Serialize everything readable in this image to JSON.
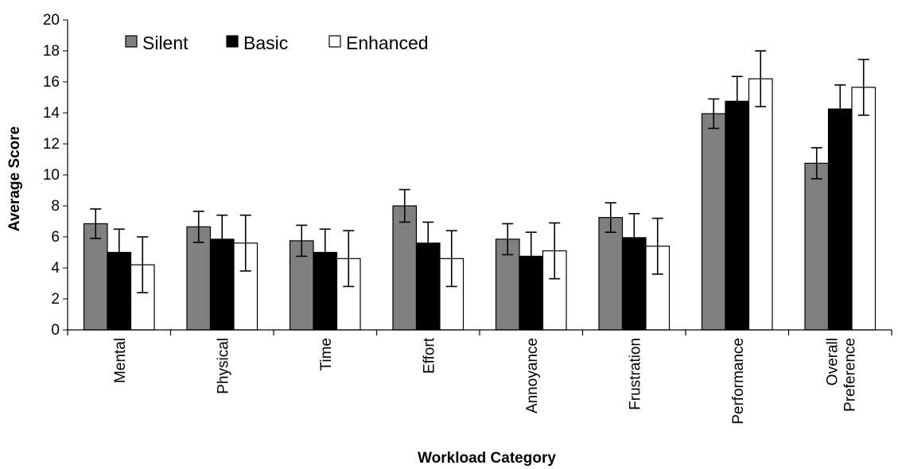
{
  "chart_data": {
    "type": "bar",
    "title": "",
    "xlabel": "Workload Category",
    "ylabel": "Average Score",
    "ylim": [
      0,
      20
    ],
    "yticks": [
      "0",
      "2",
      "4",
      "6",
      "8",
      "10",
      "12",
      "14",
      "16",
      "18",
      "20"
    ],
    "grid": false,
    "legend_position": "top-left",
    "categories": [
      [
        "Mental"
      ],
      [
        "Physical"
      ],
      [
        "Time"
      ],
      [
        "Effort"
      ],
      [
        "Annoyance"
      ],
      [
        "Frustration"
      ],
      [
        "Performance"
      ],
      [
        "Overall",
        "Preference"
      ]
    ],
    "series": [
      {
        "name": "Silent",
        "color": "#808080",
        "values": [
          6.85,
          6.65,
          5.75,
          8.0,
          5.85,
          7.25,
          13.95,
          10.75
        ],
        "error": [
          0.95,
          1.0,
          1.0,
          1.05,
          1.0,
          0.95,
          0.95,
          1.0
        ]
      },
      {
        "name": "Basic",
        "color": "#000000",
        "values": [
          5.0,
          5.85,
          5.0,
          5.6,
          4.75,
          5.95,
          14.75,
          14.25
        ],
        "error": [
          1.5,
          1.55,
          1.5,
          1.35,
          1.55,
          1.55,
          1.6,
          1.55
        ]
      },
      {
        "name": "Enhanced",
        "color": "#ffffff",
        "values": [
          4.2,
          5.6,
          4.6,
          4.6,
          5.1,
          5.4,
          16.2,
          15.65
        ],
        "error": [
          1.8,
          1.8,
          1.8,
          1.8,
          1.8,
          1.8,
          1.8,
          1.8
        ]
      }
    ]
  }
}
